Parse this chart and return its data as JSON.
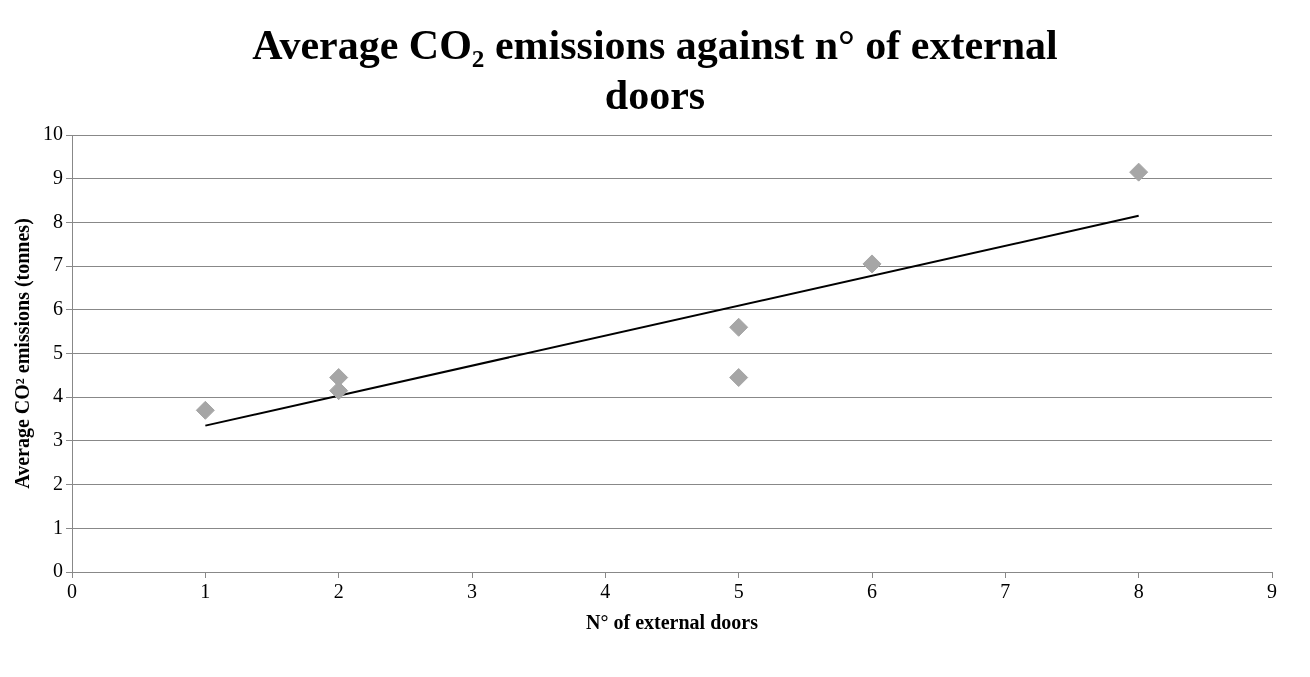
{
  "chart_data": {
    "type": "scatter",
    "title": "Average CO₂ emissions against n° of external doors",
    "xlabel": "N° of external doors",
    "ylabel": "Average CO² emissions (tonnes)",
    "series": [
      {
        "color": "#a6a6a6",
        "marker": "diamond",
        "x": [
          1,
          2,
          2,
          5,
          5,
          6,
          8
        ],
        "values": [
          3.7,
          4.45,
          4.15,
          5.6,
          4.45,
          7.05,
          9.15
        ]
      },
      {
        "type": "line",
        "color": "#000000",
        "marker": "none",
        "x": [
          1,
          8
        ],
        "values": [
          3.35,
          8.15
        ]
      }
    ],
    "xlim": [
      0,
      9
    ],
    "xticks": [
      0,
      1,
      2,
      3,
      4,
      5,
      6,
      7,
      8,
      9
    ],
    "ylim": [
      0,
      10
    ],
    "yticks": [
      0,
      1,
      2,
      3,
      4,
      5,
      6,
      7,
      8,
      9,
      10
    ],
    "grid": "y",
    "legend": false
  }
}
